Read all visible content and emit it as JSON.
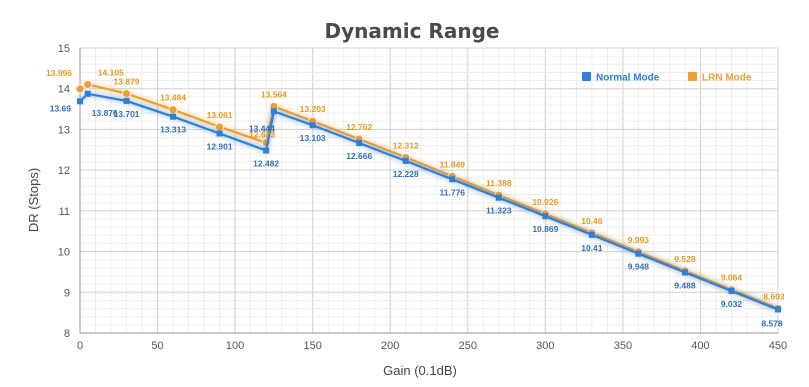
{
  "chart_data": {
    "type": "line",
    "title": "Dynamic Range",
    "xlabel": "Gain (0.1dB)",
    "ylabel": "DR (Stops)",
    "xlim": [
      0,
      450
    ],
    "ylim": [
      8,
      15
    ],
    "xticks": [
      0,
      50,
      100,
      150,
      200,
      250,
      300,
      350,
      400,
      450
    ],
    "yticks": [
      8,
      9,
      10,
      11,
      12,
      13,
      14,
      15
    ],
    "grid": true,
    "legend_position": "top-right",
    "series": [
      {
        "name": "Normal Mode",
        "color": "#2f7ed8",
        "x": [
          0,
          5,
          30,
          60,
          90,
          120,
          125,
          150,
          180,
          210,
          240,
          270,
          300,
          330,
          360,
          390,
          420,
          450
        ],
        "y": [
          13.69,
          13.876,
          13.701,
          13.313,
          12.901,
          12.482,
          13.444,
          13.103,
          12.666,
          12.228,
          11.776,
          11.323,
          10.869,
          10.41,
          9.948,
          9.488,
          9.032,
          8.578
        ],
        "labels": [
          "13.69",
          "13.876",
          "13.701",
          "13.313",
          "12.901",
          "12.482",
          "13.444",
          "13.103",
          "12.666",
          "12.228",
          "11.776",
          "11.323",
          "10.869",
          "10.41",
          "9.948",
          "9.488",
          "9.032",
          "8.578"
        ]
      },
      {
        "name": "LRN Mode",
        "color": "#f0a030",
        "x": [
          0,
          5,
          30,
          60,
          90,
          120,
          125,
          150,
          180,
          210,
          240,
          270,
          300,
          330,
          360,
          390,
          420,
          450
        ],
        "y": [
          13.996,
          14.105,
          13.879,
          13.484,
          13.061,
          12.673,
          13.564,
          13.203,
          12.762,
          12.312,
          11.849,
          11.388,
          10.926,
          10.46,
          9.993,
          9.528,
          9.064,
          8.603
        ],
        "labels": [
          "13.996",
          "14.105",
          "13.879",
          "13.484",
          "13.061",
          "12.673",
          "13.564",
          "13.203",
          "12.762",
          "12.312",
          "11.849",
          "11.388",
          "10.926",
          "10.46",
          "9.993",
          "9.528",
          "9.064",
          "8.603"
        ]
      }
    ]
  }
}
